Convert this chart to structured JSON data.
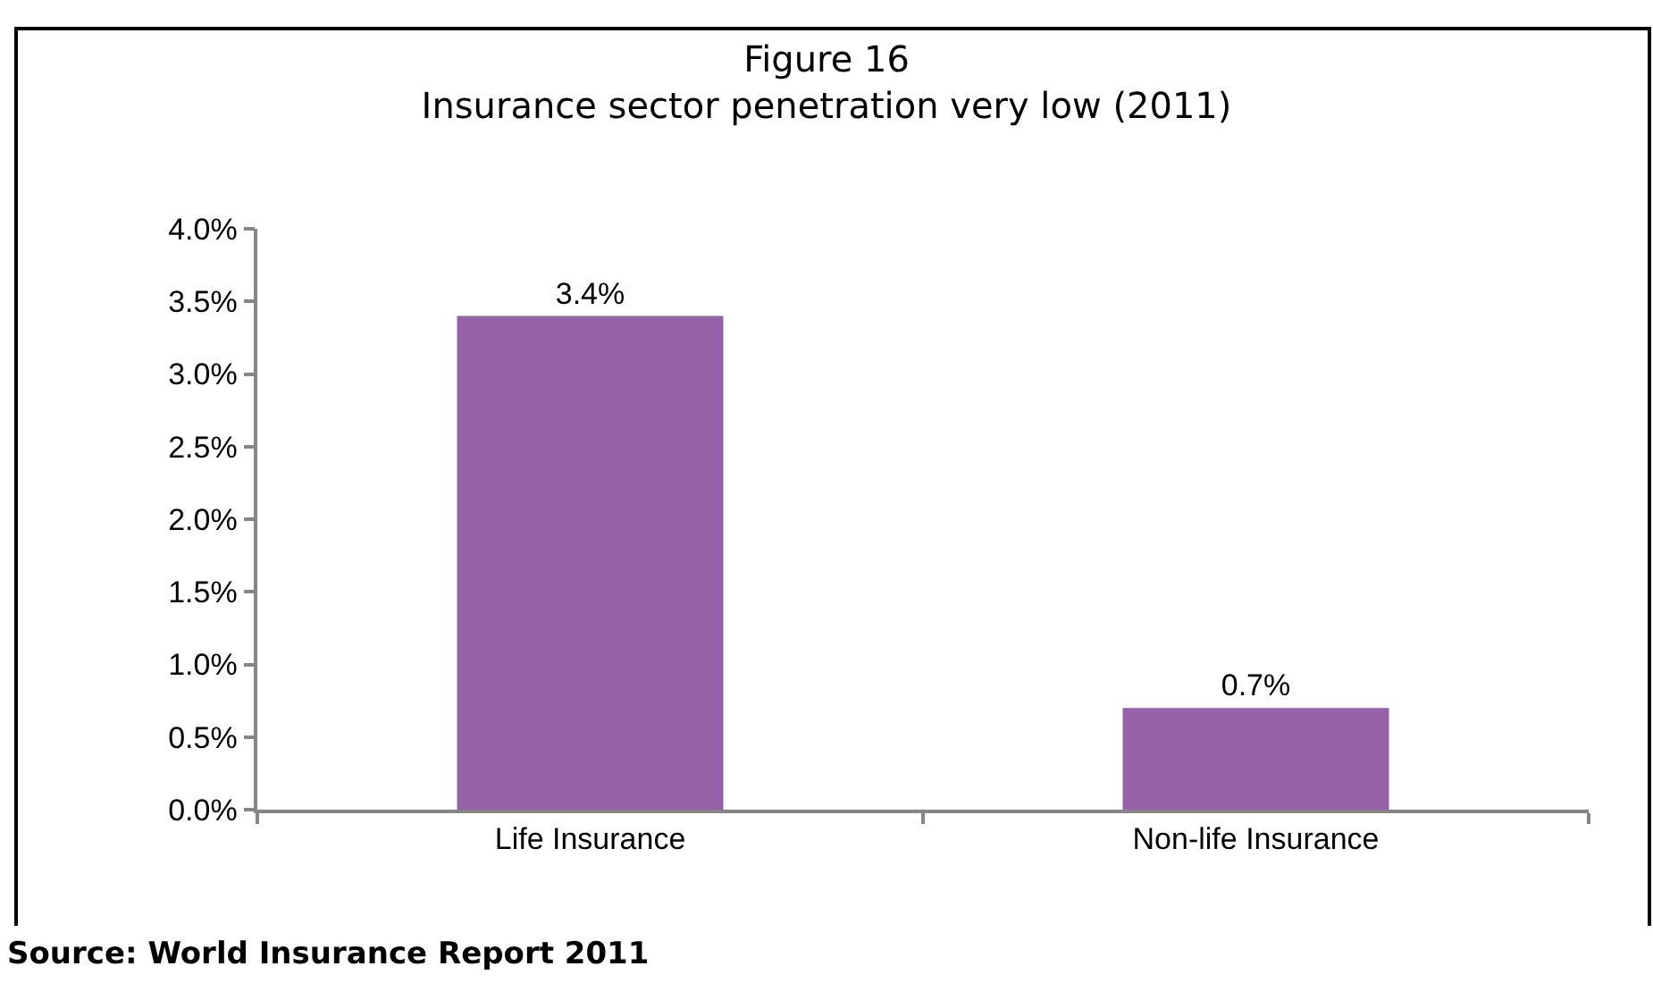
{
  "chart_data": {
    "type": "bar",
    "title": "Figure 16",
    "subtitle": "Insurance sector penetration very low (2011)",
    "categories": [
      "Life Insurance",
      "Non-life Insurance"
    ],
    "values": [
      3.4,
      0.7
    ],
    "color": "#9561a8",
    "value_labels": [
      "3.4%",
      "0.7%"
    ],
    "ylim": [
      0,
      4.0
    ],
    "yticks": [
      {
        "value": 0,
        "label": "0.0%"
      },
      {
        "value": 0.5,
        "label": "0.5%"
      },
      {
        "value": 1.0,
        "label": "1.0%"
      },
      {
        "value": 1.5,
        "label": "1.5%"
      },
      {
        "value": 2.0,
        "label": "2.0%"
      },
      {
        "value": 2.5,
        "label": "2.5%"
      },
      {
        "value": 3.0,
        "label": "3.0%"
      },
      {
        "value": 3.5,
        "label": "3.5%"
      },
      {
        "value": 4.0,
        "label": "4.0%"
      }
    ],
    "annotations": [
      "Source: World Insurance Report 2011"
    ]
  }
}
